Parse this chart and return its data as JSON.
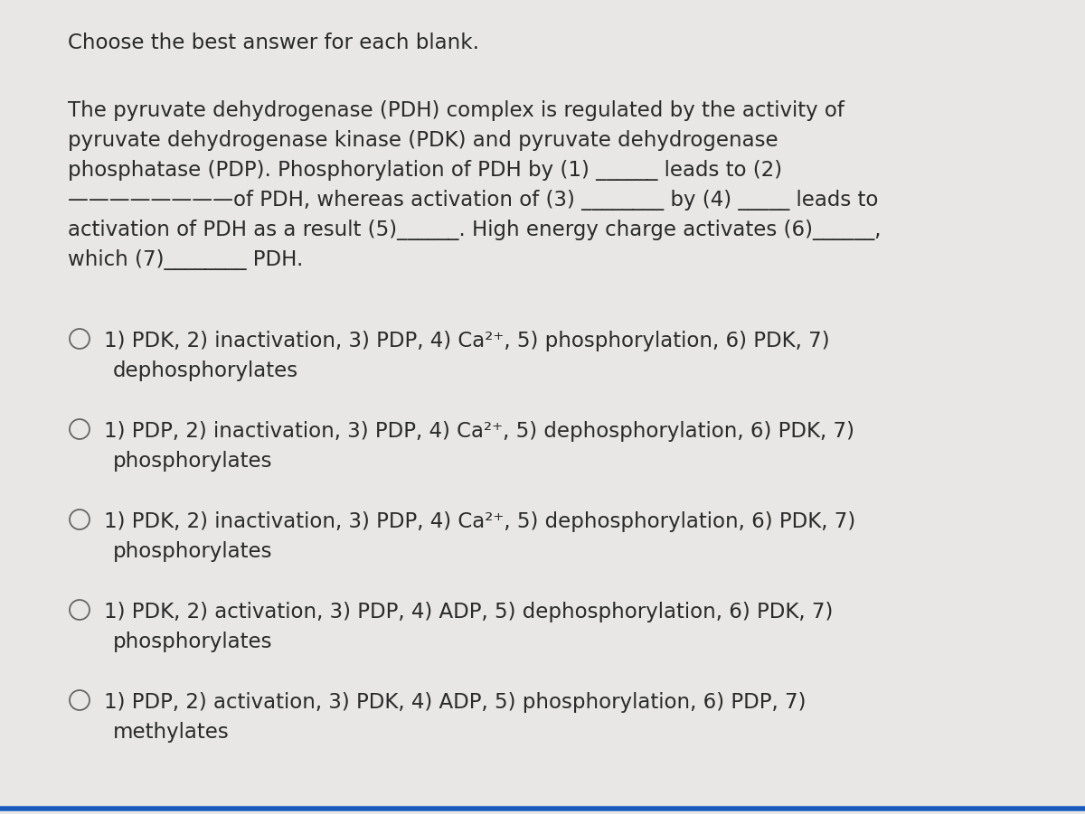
{
  "background_color": "#e8e7e5",
  "title": "Choose the best answer for each blank.",
  "title_fontsize": 16.5,
  "paragraph_lines": [
    "The pyruvate dehydrogenase (PDH) complex is regulated by the activity of",
    "pyruvate dehydrogenase kinase (PDK) and pyruvate dehydrogenase",
    "phosphatase (PDP). Phosphorylation of PDH by (1) ______ leads to (2)",
    "————————of PDH, whereas activation of (3) ________ by (4) _____ leads to",
    "activation of PDH as a result (5)______. High energy charge activates (6)______,",
    "which (7)________ PDH."
  ],
  "para_fontsize": 16.5,
  "options": [
    {
      "line1": "1) PDK, 2) inactivation, 3) PDP, 4) Ca²⁺, 5) phosphorylation, 6) PDK, 7)",
      "line2": "dephosphorylates"
    },
    {
      "line1": "1) PDP, 2) inactivation, 3) PDP, 4) Ca²⁺, 5) dephosphorylation, 6) PDK, 7)",
      "line2": "phosphorylates"
    },
    {
      "line1": "1) PDK, 2) inactivation, 3) PDP, 4) Ca²⁺, 5) dephosphorylation, 6) PDK, 7)",
      "line2": "phosphorylates"
    },
    {
      "line1": "1) PDK, 2) activation, 3) PDP, 4) ADP, 5) dephosphorylation, 6) PDK, 7)",
      "line2": "phosphorylates"
    },
    {
      "line1": "1) PDP, 2) activation, 3) PDK, 4) ADP, 5) phosphorylation, 6) PDP, 7)",
      "line2": "methylates"
    }
  ],
  "option_fontsize": 16.5,
  "text_color": "#2a2a2a",
  "circle_color": "#666666",
  "blue_line_color": "#1a5abf"
}
